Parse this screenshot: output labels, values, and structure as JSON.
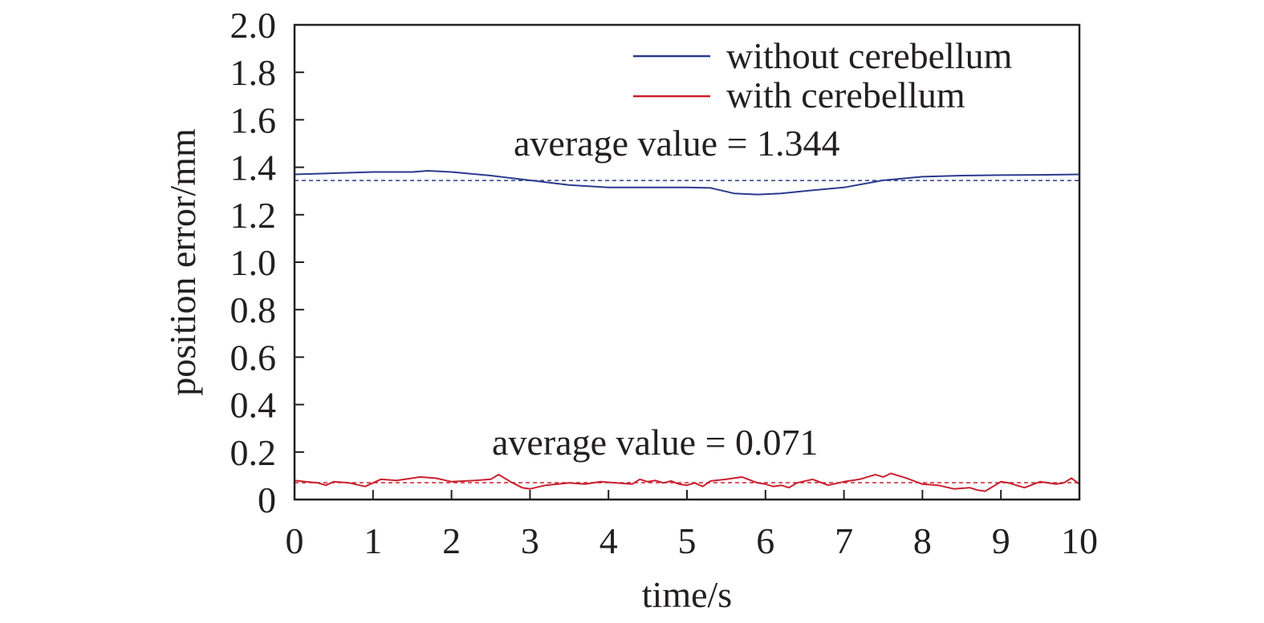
{
  "chart_data": {
    "type": "line",
    "xlabel": "time/s",
    "ylabel": "position error/mm",
    "xlim": [
      0,
      10
    ],
    "ylim": [
      0,
      2.0
    ],
    "xticks": [
      "0",
      "1",
      "2",
      "3",
      "4",
      "5",
      "6",
      "7",
      "8",
      "9",
      "10"
    ],
    "yticks": [
      "0",
      "0.2",
      "0.4",
      "0.6",
      "0.8",
      "1.0",
      "1.2",
      "1.4",
      "1.6",
      "1.8",
      "2.0"
    ],
    "grid": false,
    "legend_position": "top-right",
    "series": [
      {
        "name": "without cerebellum",
        "color": "#2b3a8f",
        "x": [
          0,
          0.5,
          1,
          1.5,
          1.7,
          2,
          2.5,
          3,
          3.5,
          4,
          4.5,
          5,
          5.3,
          5.6,
          5.9,
          6.2,
          6.5,
          7,
          7.5,
          8,
          8.5,
          9,
          9.5,
          10
        ],
        "y": [
          1.37,
          1.375,
          1.38,
          1.38,
          1.385,
          1.38,
          1.365,
          1.345,
          1.325,
          1.315,
          1.315,
          1.315,
          1.313,
          1.29,
          1.285,
          1.29,
          1.3,
          1.315,
          1.345,
          1.36,
          1.365,
          1.367,
          1.368,
          1.37
        ]
      },
      {
        "name": "with cerebellum",
        "color": "#c8202f",
        "x": [
          0,
          0.3,
          0.4,
          0.5,
          0.7,
          0.9,
          1.1,
          1.3,
          1.6,
          1.8,
          2.0,
          2.3,
          2.5,
          2.6,
          2.75,
          2.9,
          3.0,
          3.2,
          3.5,
          3.7,
          3.9,
          4.1,
          4.3,
          4.4,
          4.5,
          4.6,
          4.7,
          4.8,
          4.9,
          5.0,
          5.1,
          5.2,
          5.3,
          5.5,
          5.7,
          5.9,
          6.0,
          6.1,
          6.2,
          6.3,
          6.4,
          6.6,
          6.8,
          7.0,
          7.2,
          7.4,
          7.5,
          7.6,
          7.8,
          8.0,
          8.2,
          8.4,
          8.6,
          8.7,
          8.8,
          9.0,
          9.1,
          9.3,
          9.5,
          9.7,
          9.8,
          9.9,
          10.0
        ],
        "y": [
          0.08,
          0.07,
          0.06,
          0.075,
          0.07,
          0.055,
          0.085,
          0.08,
          0.095,
          0.09,
          0.075,
          0.08,
          0.085,
          0.105,
          0.075,
          0.05,
          0.045,
          0.06,
          0.07,
          0.065,
          0.075,
          0.07,
          0.065,
          0.085,
          0.075,
          0.08,
          0.07,
          0.078,
          0.065,
          0.06,
          0.07,
          0.055,
          0.078,
          0.085,
          0.095,
          0.07,
          0.065,
          0.055,
          0.06,
          0.05,
          0.07,
          0.085,
          0.06,
          0.075,
          0.085,
          0.105,
          0.095,
          0.11,
          0.09,
          0.065,
          0.06,
          0.045,
          0.05,
          0.04,
          0.035,
          0.075,
          0.07,
          0.05,
          0.075,
          0.065,
          0.07,
          0.09,
          0.065
        ]
      }
    ],
    "reference_lines": [
      {
        "y": 1.344,
        "color": "#2b3a8f",
        "style": "dashed"
      },
      {
        "y": 0.071,
        "color": "#c8202f",
        "style": "dashed"
      }
    ],
    "annotations": [
      {
        "text": "average value = 1.344"
      },
      {
        "text": "average value = 0.071"
      }
    ]
  }
}
